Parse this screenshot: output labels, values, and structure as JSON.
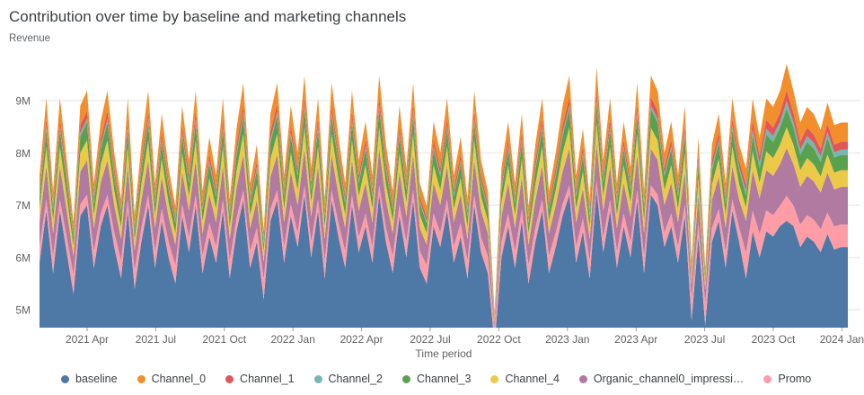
{
  "chart_data": {
    "type": "area",
    "stacked": true,
    "title": "Contribution over time by baseline and marketing channels",
    "values_unit": "millions",
    "y_axis": {
      "label": "Revenue",
      "tick_labels": [
        "5M",
        "6M",
        "7M",
        "8M",
        "9M"
      ],
      "tick_values": [
        5,
        6,
        7,
        8,
        9
      ],
      "range_shown": [
        4.65,
        9.9
      ]
    },
    "x_axis": {
      "label": "Time period",
      "tick_labels": [
        "2021 Apr",
        "2021 Jul",
        "2021 Oct",
        "2022 Jan",
        "2022 Apr",
        "2022 Jul",
        "2022 Oct",
        "2023 Jan",
        "2023 Apr",
        "2023 Jul",
        "2023 Oct",
        "2024 Jan"
      ],
      "first_tick_x": 97,
      "tick_spacing_px": 76.4
    },
    "grid": "horizontal",
    "legend_position": "bottom-left",
    "stack_order_bottom_to_top": [
      "baseline",
      "Promo",
      "Organic_channel0_impressi…",
      "Channel_4",
      "Channel_3",
      "Channel_2",
      "Channel_1",
      "Channel_0"
    ],
    "series": [
      {
        "name": "baseline",
        "color": "#4e79a7",
        "values": [
          5.9,
          6.9,
          5.7,
          6.9,
          6.1,
          5.3,
          6.8,
          7.0,
          5.8,
          6.6,
          7.0,
          6.2,
          5.6,
          6.9,
          5.4,
          6.3,
          7.0,
          5.8,
          6.7,
          6.0,
          5.5,
          6.8,
          6.1,
          7.0,
          5.7,
          6.4,
          5.9,
          6.9,
          5.6,
          6.5,
          7.1,
          5.8,
          6.3,
          5.2,
          6.7,
          7.1,
          5.9,
          6.8,
          6.2,
          7.2,
          6.0,
          6.9,
          5.6,
          7.1,
          6.4,
          5.8,
          7.0,
          6.1,
          6.6,
          5.9,
          7.2,
          6.3,
          5.7,
          6.8,
          6.0,
          7.1,
          5.8,
          5.5,
          6.6,
          6.2,
          6.9,
          5.9,
          6.4,
          5.6,
          7.0,
          6.1,
          5.7,
          4.35,
          6.0,
          6.6,
          5.8,
          6.7,
          5.5,
          6.3,
          6.9,
          5.7,
          6.2,
          6.8,
          7.2,
          5.9,
          6.5,
          5.6,
          7.3,
          6.1,
          6.9,
          5.8,
          6.6,
          6.0,
          7.1,
          5.7,
          7.2,
          7.0,
          6.2,
          6.6,
          5.9,
          6.8,
          4.8,
          6.4,
          4.7,
          6.3,
          6.7,
          5.8,
          6.9,
          6.3,
          5.6,
          6.5,
          6.0,
          6.5,
          6.4,
          6.6,
          6.7,
          6.6,
          6.2,
          6.4,
          6.3,
          6.1,
          6.45,
          6.15,
          6.2,
          6.2
        ]
      },
      {
        "name": "Promo",
        "color": "#ff9da7",
        "values": [
          0.31,
          0.21,
          0.33,
          0.21,
          0.29,
          0.37,
          0.22,
          0.2,
          0.32,
          0.24,
          0.2,
          0.28,
          0.34,
          0.21,
          0.36,
          0.27,
          0.2,
          0.32,
          0.23,
          0.3,
          0.35,
          0.22,
          0.29,
          0.2,
          0.33,
          0.26,
          0.31,
          0.21,
          0.34,
          0.25,
          0.19,
          0.32,
          0.27,
          0.38,
          0.23,
          0.19,
          0.31,
          0.22,
          0.28,
          0.18,
          0.3,
          0.21,
          0.34,
          0.19,
          0.26,
          0.32,
          0.2,
          0.29,
          0.24,
          0.31,
          0.18,
          0.27,
          0.33,
          0.22,
          0.3,
          0.19,
          0.32,
          0.35,
          0.24,
          0.28,
          0.21,
          0.31,
          0.26,
          0.34,
          0.2,
          0.29,
          0.33,
          0.3,
          0.3,
          0.24,
          0.32,
          0.23,
          0.35,
          0.27,
          0.21,
          0.33,
          0.28,
          0.22,
          0.18,
          0.31,
          0.25,
          0.34,
          0.17,
          0.29,
          0.21,
          0.32,
          0.24,
          0.3,
          0.19,
          0.33,
          0.18,
          0.2,
          0.28,
          0.24,
          0.31,
          0.22,
          0.42,
          0.26,
          0.43,
          0.27,
          0.23,
          0.32,
          0.21,
          0.27,
          0.49,
          0.4,
          0.45,
          0.4,
          0.41,
          0.39,
          0.48,
          0.39,
          0.43,
          0.41,
          0.42,
          0.44,
          0.41,
          0.44,
          0.43,
          0.43
        ]
      },
      {
        "name": "Organic_channel0_impressi…",
        "color": "#b07aa1",
        "values": [
          0.46,
          0.64,
          0.43,
          0.64,
          0.5,
          0.35,
          0.62,
          0.66,
          0.44,
          0.59,
          0.66,
          0.52,
          0.41,
          0.64,
          0.37,
          0.53,
          0.66,
          0.44,
          0.61,
          0.48,
          0.39,
          0.62,
          0.5,
          0.66,
          0.43,
          0.55,
          0.46,
          0.64,
          0.41,
          0.57,
          0.68,
          0.44,
          0.53,
          0.34,
          0.61,
          0.68,
          0.46,
          0.62,
          0.52,
          0.7,
          0.48,
          0.64,
          0.41,
          0.68,
          0.55,
          0.44,
          0.66,
          0.5,
          0.59,
          0.46,
          0.7,
          0.53,
          0.43,
          0.62,
          0.48,
          0.68,
          0.44,
          0.39,
          0.59,
          0.52,
          0.64,
          0.46,
          0.55,
          0.41,
          0.66,
          0.5,
          0.43,
          0.1,
          0.48,
          0.59,
          0.44,
          0.61,
          0.39,
          0.53,
          0.64,
          0.43,
          0.52,
          0.62,
          0.7,
          0.46,
          0.57,
          0.41,
          0.71,
          0.5,
          0.64,
          0.44,
          0.59,
          0.48,
          0.68,
          0.43,
          0.7,
          0.66,
          0.52,
          0.59,
          0.46,
          0.62,
          0.26,
          0.55,
          0.25,
          0.53,
          0.61,
          0.44,
          0.64,
          0.53,
          0.61,
          0.77,
          0.68,
          0.77,
          0.75,
          0.79,
          0.91,
          0.79,
          0.72,
          0.75,
          0.73,
          0.7,
          0.76,
          0.71,
          0.72,
          0.72
        ]
      },
      {
        "name": "Channel_4",
        "color": "#edc948",
        "values": [
          0.26,
          0.37,
          0.24,
          0.37,
          0.28,
          0.19,
          0.36,
          0.38,
          0.25,
          0.34,
          0.38,
          0.29,
          0.23,
          0.37,
          0.2,
          0.3,
          0.38,
          0.25,
          0.35,
          0.27,
          0.22,
          0.36,
          0.28,
          0.38,
          0.24,
          0.31,
          0.26,
          0.37,
          0.23,
          0.33,
          0.39,
          0.25,
          0.3,
          0.18,
          0.35,
          0.39,
          0.26,
          0.36,
          0.29,
          0.4,
          0.27,
          0.37,
          0.23,
          0.39,
          0.31,
          0.25,
          0.38,
          0.28,
          0.34,
          0.26,
          0.4,
          0.3,
          0.24,
          0.36,
          0.27,
          0.39,
          0.25,
          0.22,
          0.34,
          0.29,
          0.37,
          0.26,
          0.31,
          0.23,
          0.38,
          0.28,
          0.24,
          0.06,
          0.27,
          0.34,
          0.25,
          0.35,
          0.22,
          0.3,
          0.37,
          0.24,
          0.29,
          0.36,
          0.4,
          0.26,
          0.33,
          0.23,
          0.41,
          0.28,
          0.37,
          0.25,
          0.34,
          0.27,
          0.39,
          0.24,
          0.4,
          0.38,
          0.29,
          0.34,
          0.26,
          0.36,
          0.14,
          0.31,
          0.13,
          0.3,
          0.35,
          0.25,
          0.37,
          0.3,
          0.26,
          0.36,
          0.3,
          0.36,
          0.34,
          0.37,
          0.4,
          0.37,
          0.32,
          0.34,
          0.33,
          0.31,
          0.35,
          0.32,
          0.32,
          0.32
        ]
      },
      {
        "name": "Channel_3",
        "color": "#59a14f",
        "values": [
          0.23,
          0.33,
          0.21,
          0.33,
          0.25,
          0.17,
          0.32,
          0.34,
          0.22,
          0.3,
          0.34,
          0.26,
          0.2,
          0.33,
          0.18,
          0.27,
          0.34,
          0.22,
          0.31,
          0.24,
          0.19,
          0.32,
          0.25,
          0.34,
          0.21,
          0.28,
          0.23,
          0.33,
          0.2,
          0.29,
          0.35,
          0.22,
          0.27,
          0.16,
          0.31,
          0.35,
          0.23,
          0.32,
          0.26,
          0.36,
          0.24,
          0.33,
          0.2,
          0.35,
          0.28,
          0.22,
          0.34,
          0.25,
          0.3,
          0.23,
          0.36,
          0.27,
          0.21,
          0.32,
          0.24,
          0.35,
          0.22,
          0.19,
          0.3,
          0.26,
          0.33,
          0.23,
          0.28,
          0.2,
          0.34,
          0.25,
          0.21,
          0.05,
          0.24,
          0.3,
          0.22,
          0.31,
          0.19,
          0.27,
          0.33,
          0.21,
          0.26,
          0.32,
          0.36,
          0.23,
          0.29,
          0.2,
          0.37,
          0.25,
          0.33,
          0.22,
          0.3,
          0.24,
          0.35,
          0.21,
          0.36,
          0.34,
          0.26,
          0.3,
          0.23,
          0.32,
          0.12,
          0.28,
          0.11,
          0.27,
          0.31,
          0.22,
          0.33,
          0.27,
          0.23,
          0.32,
          0.27,
          0.32,
          0.31,
          0.33,
          0.36,
          0.33,
          0.29,
          0.31,
          0.3,
          0.28,
          0.32,
          0.29,
          0.29,
          0.29
        ]
      },
      {
        "name": "Channel_2",
        "color": "#76b7b2",
        "values": [
          0.05,
          0.07,
          0.04,
          0.07,
          0.05,
          0.04,
          0.07,
          0.07,
          0.05,
          0.06,
          0.07,
          0.05,
          0.04,
          0.07,
          0.04,
          0.06,
          0.07,
          0.05,
          0.06,
          0.05,
          0.04,
          0.07,
          0.05,
          0.07,
          0.04,
          0.06,
          0.05,
          0.07,
          0.04,
          0.06,
          0.07,
          0.05,
          0.06,
          0.03,
          0.06,
          0.07,
          0.05,
          0.07,
          0.05,
          0.07,
          0.05,
          0.07,
          0.04,
          0.07,
          0.06,
          0.05,
          0.07,
          0.05,
          0.06,
          0.05,
          0.07,
          0.06,
          0.04,
          0.07,
          0.05,
          0.07,
          0.05,
          0.04,
          0.06,
          0.05,
          0.07,
          0.05,
          0.06,
          0.04,
          0.07,
          0.05,
          0.04,
          0.02,
          0.05,
          0.06,
          0.05,
          0.06,
          0.04,
          0.06,
          0.07,
          0.04,
          0.05,
          0.07,
          0.07,
          0.05,
          0.06,
          0.04,
          0.08,
          0.05,
          0.07,
          0.05,
          0.06,
          0.05,
          0.07,
          0.04,
          0.07,
          0.07,
          0.05,
          0.06,
          0.05,
          0.07,
          0.03,
          0.06,
          0.03,
          0.06,
          0.06,
          0.05,
          0.07,
          0.06,
          0.09,
          0.11,
          0.1,
          0.11,
          0.11,
          0.11,
          0.14,
          0.11,
          0.1,
          0.11,
          0.11,
          0.1,
          0.11,
          0.1,
          0.1,
          0.1
        ]
      },
      {
        "name": "Channel_1",
        "color": "#e15759",
        "values": [
          0.1,
          0.15,
          0.09,
          0.15,
          0.11,
          0.07,
          0.14,
          0.15,
          0.09,
          0.13,
          0.15,
          0.11,
          0.08,
          0.15,
          0.07,
          0.12,
          0.15,
          0.09,
          0.14,
          0.1,
          0.08,
          0.14,
          0.11,
          0.15,
          0.09,
          0.12,
          0.1,
          0.15,
          0.08,
          0.13,
          0.16,
          0.09,
          0.12,
          0.06,
          0.14,
          0.16,
          0.1,
          0.14,
          0.11,
          0.16,
          0.1,
          0.15,
          0.08,
          0.16,
          0.12,
          0.09,
          0.15,
          0.11,
          0.13,
          0.1,
          0.16,
          0.12,
          0.09,
          0.14,
          0.1,
          0.16,
          0.09,
          0.08,
          0.13,
          0.11,
          0.15,
          0.1,
          0.12,
          0.08,
          0.15,
          0.11,
          0.09,
          0.03,
          0.1,
          0.13,
          0.09,
          0.14,
          0.08,
          0.12,
          0.15,
          0.09,
          0.11,
          0.14,
          0.16,
          0.1,
          0.13,
          0.08,
          0.17,
          0.11,
          0.15,
          0.09,
          0.13,
          0.1,
          0.16,
          0.09,
          0.16,
          0.15,
          0.11,
          0.13,
          0.1,
          0.14,
          0.04,
          0.12,
          0.04,
          0.12,
          0.14,
          0.09,
          0.15,
          0.12,
          0.12,
          0.17,
          0.14,
          0.17,
          0.16,
          0.17,
          0.21,
          0.17,
          0.15,
          0.16,
          0.16,
          0.15,
          0.16,
          0.15,
          0.15,
          0.15
        ]
      },
      {
        "name": "Channel_0",
        "color": "#f28e2b",
        "values": [
          0.26,
          0.38,
          0.23,
          0.38,
          0.28,
          0.19,
          0.37,
          0.39,
          0.25,
          0.34,
          0.39,
          0.29,
          0.22,
          0.38,
          0.2,
          0.31,
          0.39,
          0.25,
          0.35,
          0.27,
          0.21,
          0.37,
          0.28,
          0.39,
          0.23,
          0.32,
          0.26,
          0.38,
          0.22,
          0.33,
          0.4,
          0.25,
          0.31,
          0.17,
          0.35,
          0.4,
          0.26,
          0.37,
          0.29,
          0.41,
          0.27,
          0.38,
          0.22,
          0.4,
          0.32,
          0.25,
          0.39,
          0.28,
          0.34,
          0.26,
          0.41,
          0.31,
          0.23,
          0.37,
          0.27,
          0.4,
          0.25,
          0.21,
          0.34,
          0.29,
          0.38,
          0.26,
          0.32,
          0.22,
          0.39,
          0.28,
          0.23,
          0.05,
          0.27,
          0.34,
          0.25,
          0.35,
          0.21,
          0.31,
          0.38,
          0.23,
          0.29,
          0.37,
          0.41,
          0.26,
          0.33,
          0.22,
          0.43,
          0.28,
          0.38,
          0.25,
          0.34,
          0.27,
          0.4,
          0.23,
          0.41,
          0.39,
          0.29,
          0.34,
          0.26,
          0.37,
          0.13,
          0.32,
          0.12,
          0.31,
          0.35,
          0.25,
          0.38,
          0.31,
          0.3,
          0.41,
          0.35,
          0.41,
          0.4,
          0.42,
          0.5,
          0.42,
          0.37,
          0.4,
          0.39,
          0.36,
          0.4,
          0.37,
          0.37,
          0.37
        ]
      }
    ],
    "legend": [
      {
        "label": "baseline",
        "color": "#4e79a7"
      },
      {
        "label": "Channel_0",
        "color": "#f28e2b"
      },
      {
        "label": "Channel_1",
        "color": "#e15759"
      },
      {
        "label": "Channel_2",
        "color": "#76b7b2"
      },
      {
        "label": "Channel_3",
        "color": "#59a14f"
      },
      {
        "label": "Channel_4",
        "color": "#edc948"
      },
      {
        "label": "Organic_channel0_impressi…",
        "color": "#b07aa1"
      },
      {
        "label": "Promo",
        "color": "#ff9da7"
      }
    ],
    "colors": {
      "grid": "#e3e3e3",
      "axis_text": "#616161",
      "tick_mark": "#9e9e9e",
      "title_text": "#3c4043",
      "subtitle_text": "#5f6368"
    }
  }
}
